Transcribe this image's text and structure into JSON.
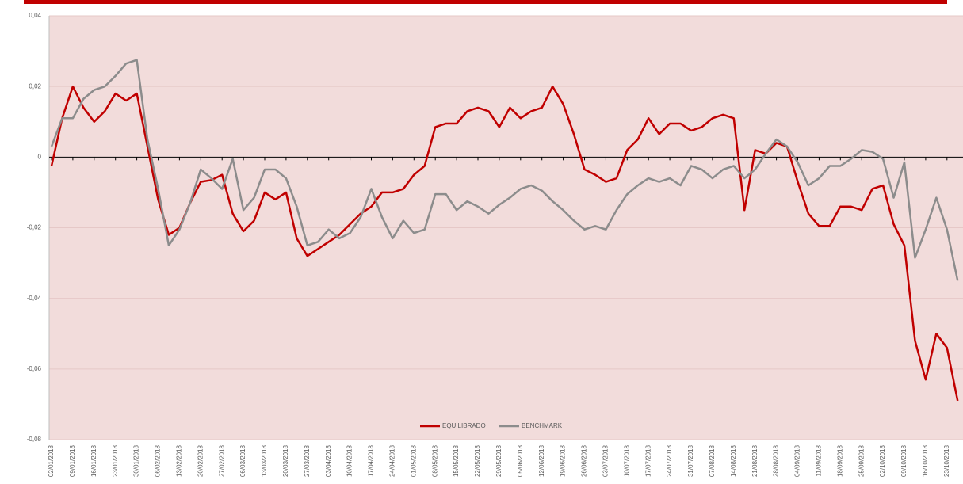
{
  "chart_data": {
    "type": "line",
    "categories": [
      "02/01/2018",
      null,
      "09/01/2018",
      null,
      "16/01/2018",
      null,
      "23/01/2018",
      null,
      "30/01/2018",
      null,
      "06/02/2018",
      null,
      "13/02/2018",
      null,
      "20/02/2018",
      null,
      "27/02/2018",
      null,
      "06/03/2018",
      null,
      "13/03/2018",
      null,
      "20/03/2018",
      null,
      "27/03/2018",
      null,
      "03/04/2018",
      null,
      "10/04/2018",
      null,
      "17/04/2018",
      null,
      "24/04/2018",
      null,
      "01/05/2018",
      null,
      "08/05/2018",
      null,
      "15/05/2018",
      null,
      "22/05/2018",
      null,
      "29/05/2018",
      null,
      "05/06/2018",
      null,
      "12/06/2018",
      null,
      "19/06/2018",
      null,
      "26/06/2018",
      null,
      "03/07/2018",
      null,
      "10/07/2018",
      null,
      "17/07/2018",
      null,
      "24/07/2018",
      null,
      "31/07/2018",
      null,
      "07/08/2018",
      null,
      "14/08/2018",
      null,
      "21/08/2018",
      null,
      "28/08/2018",
      null,
      "04/09/2018",
      null,
      "11/09/2018",
      null,
      "18/09/2018",
      null,
      "25/09/2018",
      null,
      "02/10/2018",
      null,
      "09/10/2018",
      null,
      "16/10/2018",
      null,
      "23/10/2018",
      null
    ],
    "series": [
      {
        "name": "EQUILIBRADO",
        "color": "#c00000",
        "values": [
          -0.0025,
          0.011,
          0.02,
          0.014,
          0.01,
          0.013,
          0.018,
          0.016,
          0.018,
          0.003,
          -0.012,
          -0.022,
          -0.02,
          -0.013,
          -0.007,
          -0.0065,
          -0.005,
          -0.016,
          -0.021,
          -0.018,
          -0.01,
          -0.012,
          -0.01,
          -0.023,
          -0.028,
          -0.026,
          -0.024,
          -0.022,
          -0.019,
          -0.016,
          -0.014,
          -0.01,
          -0.01,
          -0.009,
          -0.005,
          -0.0025,
          0.0085,
          0.0095,
          0.0095,
          0.013,
          0.014,
          0.013,
          0.0085,
          0.014,
          0.011,
          0.013,
          0.014,
          0.02,
          0.015,
          0.0065,
          -0.0035,
          -0.005,
          -0.007,
          -0.006,
          0.002,
          0.005,
          0.011,
          0.0065,
          0.0095,
          0.0095,
          0.0075,
          0.0085,
          0.011,
          0.012,
          0.011,
          -0.015,
          0.002,
          0.001,
          0.004,
          0.003,
          -0.007,
          -0.016,
          -0.0195,
          -0.0195,
          -0.014,
          -0.014,
          -0.015,
          -0.009,
          -0.008,
          -0.019,
          -0.025,
          -0.052,
          -0.063,
          -0.05,
          -0.054,
          -0.069
        ]
      },
      {
        "name": "BENCHMARK",
        "color": "#8c8c8c",
        "values": [
          0.003,
          0.011,
          0.011,
          0.0165,
          0.019,
          0.02,
          0.023,
          0.0265,
          0.0275,
          0.005,
          -0.009,
          -0.025,
          -0.0205,
          -0.013,
          -0.0035,
          -0.006,
          -0.009,
          -0.0005,
          -0.015,
          -0.0115,
          -0.0035,
          -0.0035,
          -0.006,
          -0.014,
          -0.025,
          -0.024,
          -0.0205,
          -0.023,
          -0.0215,
          -0.017,
          -0.009,
          -0.017,
          -0.023,
          -0.018,
          -0.0215,
          -0.0205,
          -0.0105,
          -0.0105,
          -0.015,
          -0.0125,
          -0.014,
          -0.016,
          -0.0135,
          -0.0115,
          -0.009,
          -0.008,
          -0.0095,
          -0.0125,
          -0.015,
          -0.018,
          -0.0205,
          -0.0195,
          -0.0205,
          -0.015,
          -0.0105,
          -0.008,
          -0.006,
          -0.007,
          -0.006,
          -0.008,
          -0.0025,
          -0.0035,
          -0.006,
          -0.0035,
          -0.0025,
          -0.006,
          -0.0035,
          0.001,
          0.005,
          0.003,
          -0.0015,
          -0.008,
          -0.006,
          -0.0025,
          -0.0025,
          -0.0005,
          0.002,
          0.0015,
          -0.0005,
          -0.0115,
          -0.0015,
          -0.0285,
          -0.0205,
          -0.0115,
          -0.0205,
          -0.035
        ]
      }
    ],
    "ylim": [
      -0.08,
      0.04
    ],
    "yticks": [
      {
        "value": -0.08,
        "label": "-0,08"
      },
      {
        "value": -0.06,
        "label": "-0,06"
      },
      {
        "value": -0.04,
        "label": "-0,04"
      },
      {
        "value": -0.02,
        "label": "-0,02"
      },
      0,
      {
        "value": 0.02,
        "label": "0,02"
      },
      {
        "value": 0.04,
        "label": "0,04"
      }
    ],
    "grid": true,
    "legend": "bottom",
    "background": "#f2dcdb"
  }
}
